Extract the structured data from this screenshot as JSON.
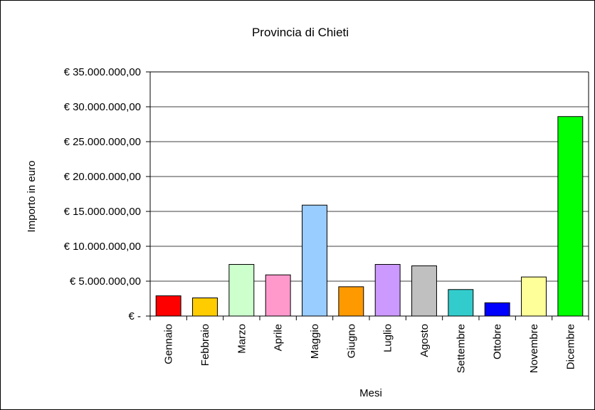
{
  "chart_data": {
    "type": "bar",
    "title": "Provincia di Chieti",
    "xlabel": "Mesi",
    "ylabel": "Importo in euro",
    "categories": [
      "Gennaio",
      "Febbraio",
      "Marzo",
      "Aprile",
      "Maggio",
      "Giugno",
      "Luglio",
      "Agosto",
      "Settembre",
      "Ottobre",
      "Novembre",
      "Dicembre"
    ],
    "values": [
      2900000,
      2600000,
      7400000,
      5900000,
      15900000,
      4200000,
      7400000,
      7200000,
      3800000,
      1900000,
      5600000,
      28600000
    ],
    "colors": [
      "#ff0000",
      "#ffcc00",
      "#ccffcc",
      "#ff99cc",
      "#99ccff",
      "#ff9900",
      "#cc99ff",
      "#c0c0c0",
      "#33cccc",
      "#0000ff",
      "#ffff99",
      "#00ff00"
    ],
    "ylim": [
      0,
      35000000
    ],
    "yticks": [
      0,
      5000000,
      10000000,
      15000000,
      20000000,
      25000000,
      30000000,
      35000000
    ],
    "ytick_labels": [
      "€ -",
      "€ 5.000.000,00",
      "€ 10.000.000,00",
      "€ 15.000.000,00",
      "€ 20.000.000,00",
      "€ 25.000.000,00",
      "€ 30.000.000,00",
      "€ 35.000.000,00"
    ],
    "grid": true,
    "legend": "none"
  }
}
